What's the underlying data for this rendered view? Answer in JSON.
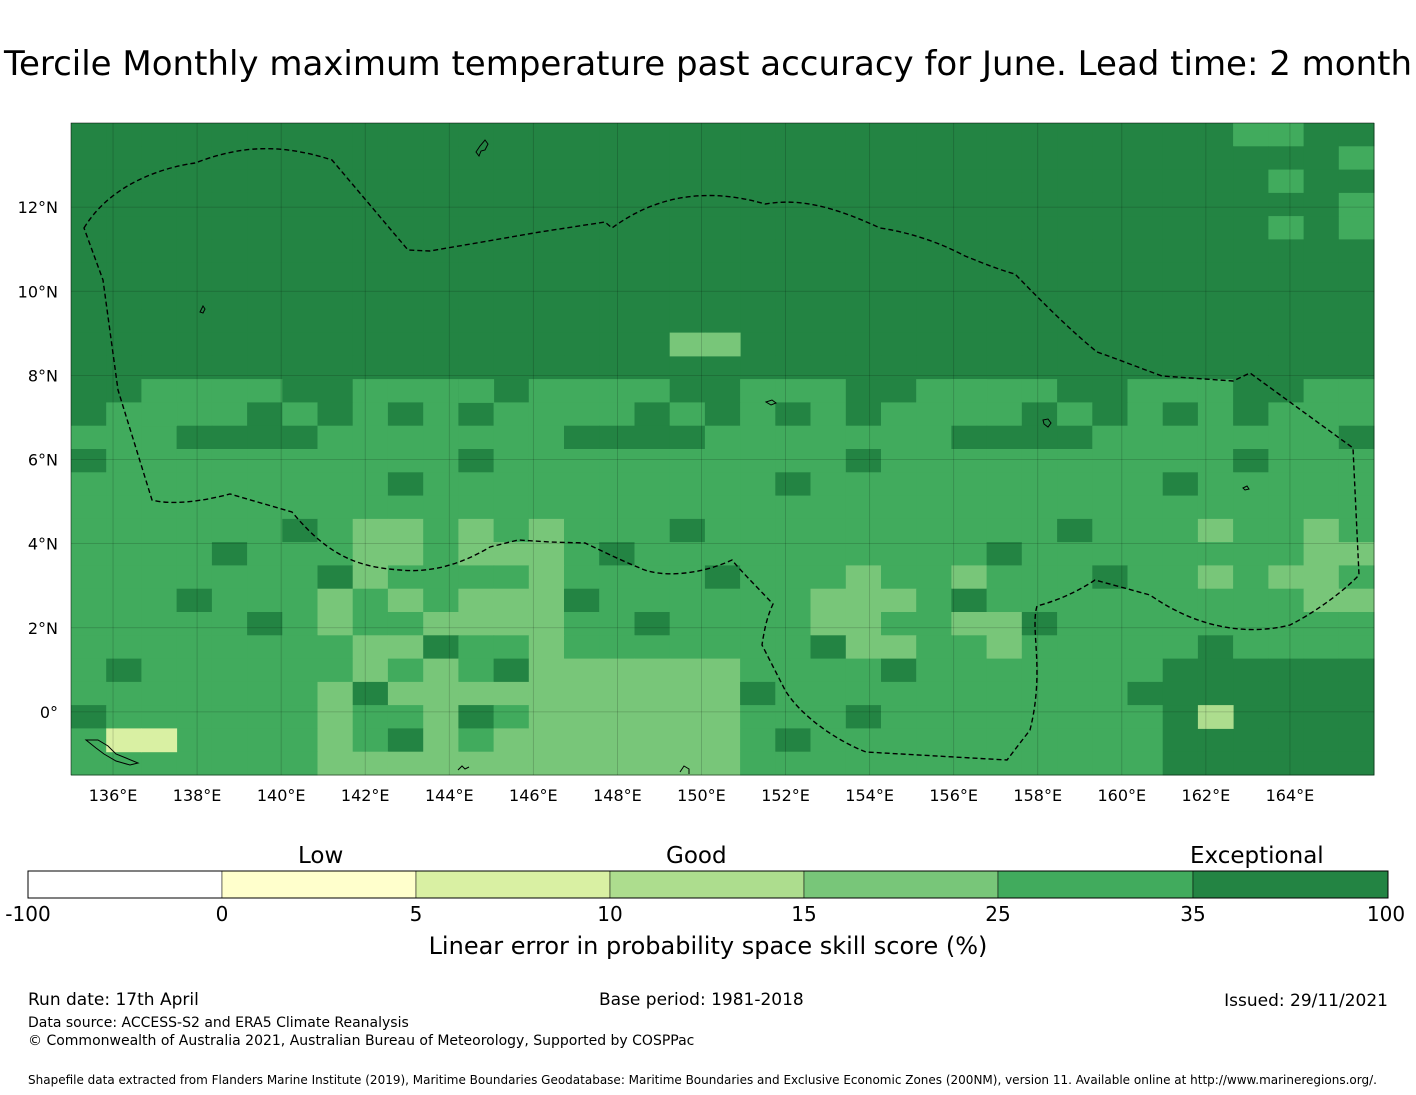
{
  "title": "Tercile Monthly maximum temperature past accuracy for June. Lead time: 2 month",
  "map": {
    "lon_range": [
      135.0,
      166.0
    ],
    "lat_range": [
      -1.5,
      14.0
    ],
    "x_ticks": [
      "136°E",
      "138°E",
      "140°E",
      "142°E",
      "144°E",
      "146°E",
      "148°E",
      "150°E",
      "152°E",
      "154°E",
      "156°E",
      "158°E",
      "160°E",
      "162°E",
      "164°E"
    ],
    "y_ticks": [
      "12°N",
      "10°N",
      "8°N",
      "6°N",
      "4°N",
      "2°N",
      "0°"
    ],
    "colors": [
      "#ffffff",
      "#ffffcc",
      "#d9f0a3",
      "#addd8e",
      "#78c679",
      "#41ab5d",
      "#238443"
    ],
    "dominant_class": "35 to 100 (Exceptional) north of ~6°N; 25 to 35 around the equator"
  },
  "colorbar": {
    "categories": [
      "Low",
      "Good",
      "Exceptional"
    ],
    "ticks": [
      "-100",
      "0",
      "5",
      "10",
      "15",
      "25",
      "35",
      "100"
    ],
    "label": "Linear error in probability space skill score (%)"
  },
  "footer": {
    "run_date": "Run date: 17th April",
    "base_period": "Base period: 1981-2018",
    "issued": "Issued: 29/11/2021",
    "data_source": "Data source: ACCESS-S2 and ERA5 Climate Reanalysis",
    "copyright": "© Commonwealth of Australia 2021, Australian Bureau of Meteorology, Supported by COSPPac",
    "shapefile": "Shapefile data extracted from Flanders Marine Institute (2019), Maritime Boundaries Geodatabase: Maritime Boundaries and Exclusive Economic Zones (200NM), version 11. Available online at http://www.marineregions.org/."
  }
}
